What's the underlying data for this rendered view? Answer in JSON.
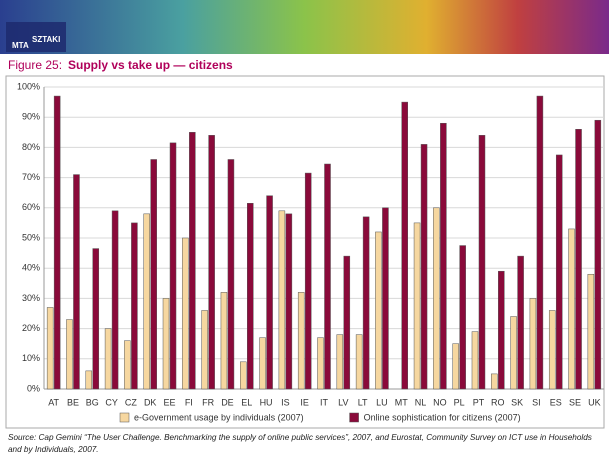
{
  "header": {
    "logo_top": "MTA",
    "logo_bottom": "SZTAKI"
  },
  "chart_data": {
    "type": "bar",
    "figure_label": "Figure 25:",
    "title": "Supply vs take up — citizens",
    "categories": [
      "AT",
      "BE",
      "BG",
      "CY",
      "CZ",
      "DK",
      "EE",
      "FI",
      "FR",
      "DE",
      "EL",
      "HU",
      "IS",
      "IE",
      "IT",
      "LV",
      "LT",
      "LU",
      "MT",
      "NL",
      "NO",
      "PL",
      "PT",
      "RO",
      "SK",
      "SI",
      "ES",
      "SE",
      "UK"
    ],
    "series": [
      {
        "name": "e-Government usage by individuals (2007)",
        "color": "#f6d7a0",
        "values": [
          27,
          23,
          6,
          20,
          16,
          58,
          30,
          50,
          26,
          32,
          9,
          17,
          59,
          32,
          17,
          18,
          18,
          52,
          null,
          55,
          60,
          15,
          19,
          5,
          24,
          30,
          26,
          53,
          38
        ]
      },
      {
        "name": "Online sophistication for citizens (2007)",
        "color": "#8a0a3a",
        "values": [
          97,
          71,
          46.5,
          59,
          55,
          76,
          81.5,
          85,
          84,
          76,
          61.5,
          64,
          58,
          71.5,
          74.5,
          44,
          57,
          60,
          95,
          81,
          88,
          47.5,
          84,
          39,
          44,
          97,
          77.5,
          86,
          89
        ]
      }
    ],
    "ylim": [
      0,
      100
    ],
    "yticks": [
      {
        "value": 0,
        "label": "0%"
      },
      {
        "value": 10,
        "label": "10%"
      },
      {
        "value": 20,
        "label": "20%"
      },
      {
        "value": 30,
        "label": "30%"
      },
      {
        "value": 40,
        "label": "40%"
      },
      {
        "value": 50,
        "label": "50%"
      },
      {
        "value": 60,
        "label": "60%"
      },
      {
        "value": 70,
        "label": "70%"
      },
      {
        "value": 80,
        "label": "80%"
      },
      {
        "value": 90,
        "label": "90%"
      },
      {
        "value": 100,
        "label": "100%"
      }
    ],
    "grid": true,
    "legend": "bottom",
    "source": "Source: Cap Gemini “The User Challenge. Benchmarking the supply of online public services”, 2007, and Eurostat, Community Survey on ICT use in Households and by Individuals, 2007."
  }
}
